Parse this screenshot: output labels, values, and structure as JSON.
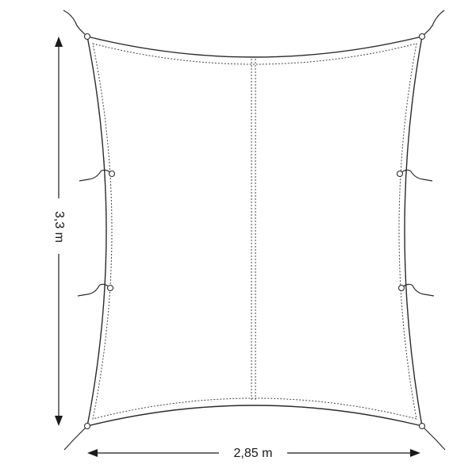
{
  "diagram": {
    "height_label": "3,3 m",
    "width_label": "2,85 m"
  }
}
